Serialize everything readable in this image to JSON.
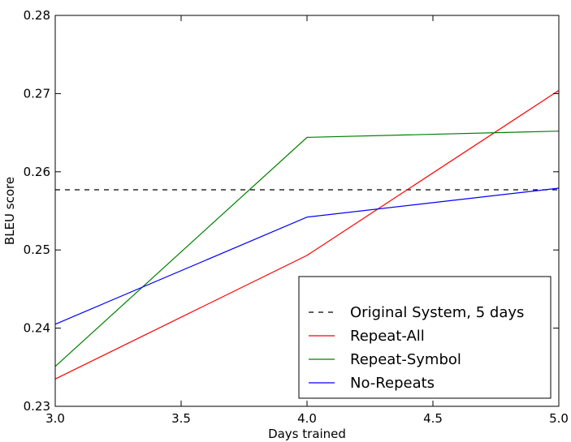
{
  "chart_data": {
    "type": "line",
    "title": "",
    "xlabel": "Days trained",
    "ylabel": "BLEU score",
    "xlim": [
      3.0,
      5.0
    ],
    "ylim": [
      0.23,
      0.28
    ],
    "xticks": [
      "3.0",
      "3.5",
      "4.0",
      "4.5",
      "5.0"
    ],
    "yticks": [
      "0.23",
      "0.24",
      "0.25",
      "0.26",
      "0.27",
      "0.28"
    ],
    "grid": false,
    "legend_position": "lower-right",
    "series": [
      {
        "name": "Original System, 5 days",
        "color": "#000000",
        "dashed": true,
        "x": [
          3.0,
          5.0
        ],
        "y": [
          0.2577,
          0.2577
        ]
      },
      {
        "name": "Repeat-All",
        "color": "#ff0000",
        "dashed": false,
        "x": [
          3.0,
          4.0,
          5.0
        ],
        "y": [
          0.2335,
          0.2493,
          0.2704
        ]
      },
      {
        "name": "Repeat-Symbol",
        "color": "#008000",
        "dashed": false,
        "x": [
          3.0,
          4.0,
          5.0
        ],
        "y": [
          0.2351,
          0.2644,
          0.2652
        ]
      },
      {
        "name": "No-Repeats",
        "color": "#0000ff",
        "dashed": false,
        "x": [
          3.0,
          4.0,
          5.0
        ],
        "y": [
          0.2405,
          0.2542,
          0.2579
        ]
      }
    ]
  }
}
